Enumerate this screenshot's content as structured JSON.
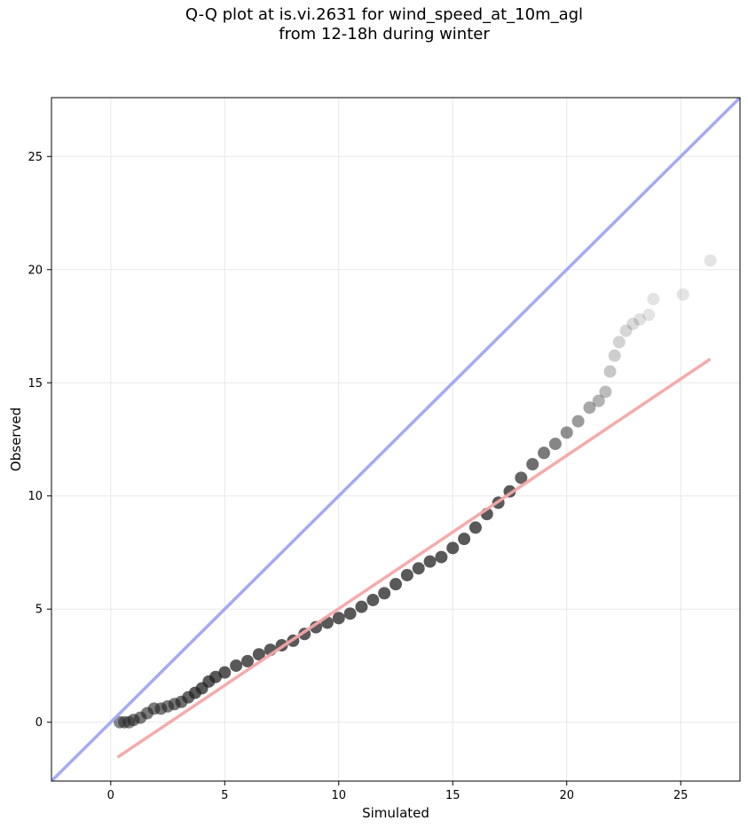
{
  "chart_data": {
    "type": "scatter",
    "title": [
      "Q-Q plot at is.vi.2631 for wind_speed_at_10m_agl",
      "from 12-18h during winter"
    ],
    "xlabel": "Simulated",
    "ylabel": "Observed",
    "xlim": [
      -2.6,
      27.6
    ],
    "ylim": [
      -2.6,
      27.6
    ],
    "xticks": [
      0,
      5,
      10,
      15,
      20,
      25
    ],
    "yticks": [
      0,
      5,
      10,
      15,
      20,
      25
    ],
    "grid": true,
    "colors": {
      "points": "#222222",
      "identity_line": "#a6a9f3",
      "fit_line": "#f4a6a6",
      "grid": "#e8e8e8"
    },
    "identity_line": {
      "x": [
        -2.6,
        27.6
      ],
      "y": [
        -2.6,
        27.6
      ]
    },
    "fit_line": {
      "x": [
        0.3,
        26.3
      ],
      "y": [
        -1.55,
        16.05
      ]
    },
    "qq_points": {
      "x": [
        0.4,
        0.6,
        0.8,
        1.0,
        1.3,
        1.6,
        1.9,
        2.2,
        2.5,
        2.8,
        3.1,
        3.4,
        3.7,
        4.0,
        4.3,
        4.6,
        5.0,
        5.5,
        6.0,
        6.5,
        7.0,
        7.5,
        8.0,
        8.5,
        9.0,
        9.5,
        10.0,
        10.5,
        11.0,
        11.5,
        12.0,
        12.5,
        13.0,
        13.5,
        14.0,
        14.5,
        15.0,
        15.5,
        16.0,
        16.5,
        17.0,
        17.5,
        18.0,
        18.5,
        19.0,
        19.5,
        20.0,
        20.5,
        21.0,
        21.4,
        21.7,
        21.9,
        22.1,
        22.3,
        22.6,
        22.9,
        23.2,
        23.6,
        23.8,
        25.1,
        26.3
      ],
      "y": [
        0.0,
        0.0,
        0.0,
        0.1,
        0.2,
        0.4,
        0.6,
        0.6,
        0.7,
        0.8,
        0.9,
        1.1,
        1.3,
        1.5,
        1.8,
        2.0,
        2.2,
        2.5,
        2.7,
        3.0,
        3.2,
        3.4,
        3.6,
        3.9,
        4.2,
        4.4,
        4.6,
        4.8,
        5.1,
        5.4,
        5.7,
        6.1,
        6.5,
        6.8,
        7.1,
        7.3,
        7.7,
        8.1,
        8.6,
        9.2,
        9.7,
        10.2,
        10.8,
        11.4,
        11.9,
        12.3,
        12.8,
        13.3,
        13.9,
        14.2,
        14.6,
        15.5,
        16.2,
        16.8,
        17.3,
        17.6,
        17.8,
        18.0,
        18.7,
        18.9,
        20.4
      ],
      "opacity": [
        0.55,
        0.55,
        0.55,
        0.6,
        0.6,
        0.6,
        0.6,
        0.6,
        0.6,
        0.62,
        0.65,
        0.7,
        0.75,
        0.75,
        0.75,
        0.75,
        0.75,
        0.75,
        0.75,
        0.75,
        0.75,
        0.75,
        0.75,
        0.75,
        0.75,
        0.75,
        0.75,
        0.75,
        0.75,
        0.75,
        0.75,
        0.75,
        0.75,
        0.75,
        0.75,
        0.75,
        0.75,
        0.75,
        0.75,
        0.75,
        0.75,
        0.75,
        0.7,
        0.65,
        0.6,
        0.55,
        0.5,
        0.45,
        0.4,
        0.35,
        0.3,
        0.25,
        0.22,
        0.2,
        0.18,
        0.16,
        0.14,
        0.12,
        0.12,
        0.12,
        0.12
      ]
    }
  }
}
